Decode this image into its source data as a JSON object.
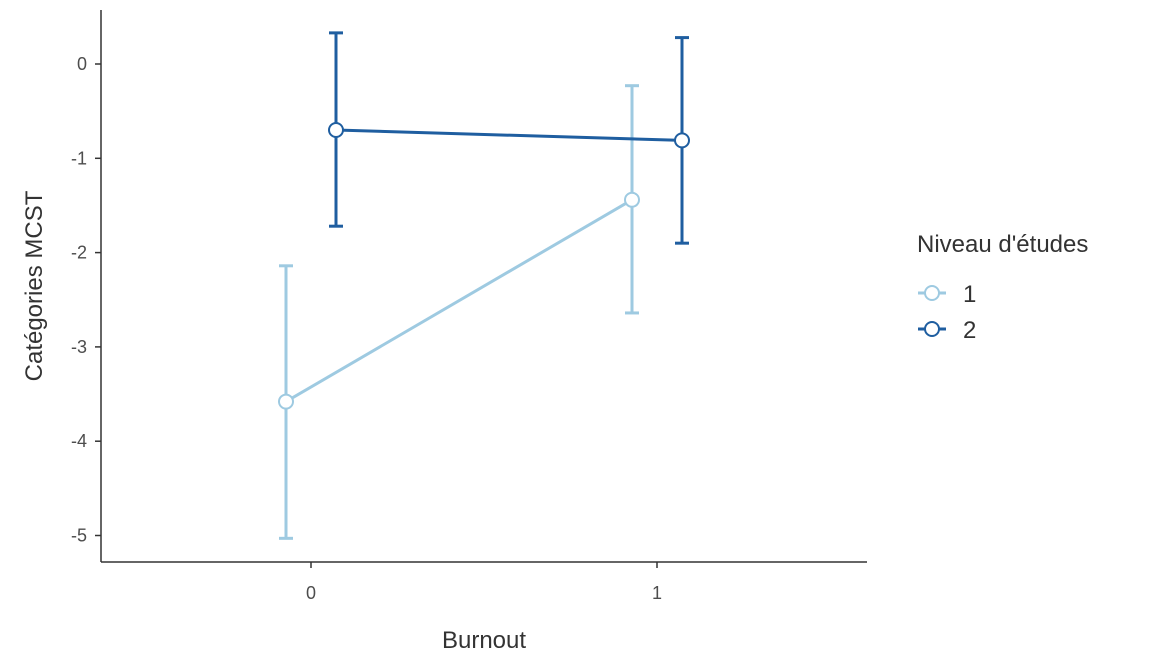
{
  "chart_data": {
    "type": "line",
    "title": "",
    "xlabel": "Burnout",
    "ylabel": "Catégories MCST",
    "x_categories": [
      "0",
      "1"
    ],
    "y_ticks": [
      0,
      -1,
      -2,
      -3,
      -4,
      -5
    ],
    "y_tick_labels": [
      "0",
      "-1",
      "-2",
      "-3",
      "-4",
      "-5"
    ],
    "ylim": [
      -5.25,
      0.55
    ],
    "grid": false,
    "legend": {
      "title": "Niveau d'études",
      "position": "right"
    },
    "error_bars": true,
    "series": [
      {
        "name": "1",
        "color": "#9ecae1",
        "points": [
          {
            "x": "0",
            "y": -3.58,
            "ymin": -5.03,
            "ymax": -2.14
          },
          {
            "x": "1",
            "y": -1.44,
            "ymin": -2.64,
            "ymax": -0.23
          }
        ]
      },
      {
        "name": "2",
        "color": "#1f5ea0",
        "points": [
          {
            "x": "0",
            "y": -0.7,
            "ymin": -1.72,
            "ymax": 0.33
          },
          {
            "x": "1",
            "y": -0.81,
            "ymin": -1.9,
            "ymax": 0.28
          }
        ]
      }
    ]
  }
}
